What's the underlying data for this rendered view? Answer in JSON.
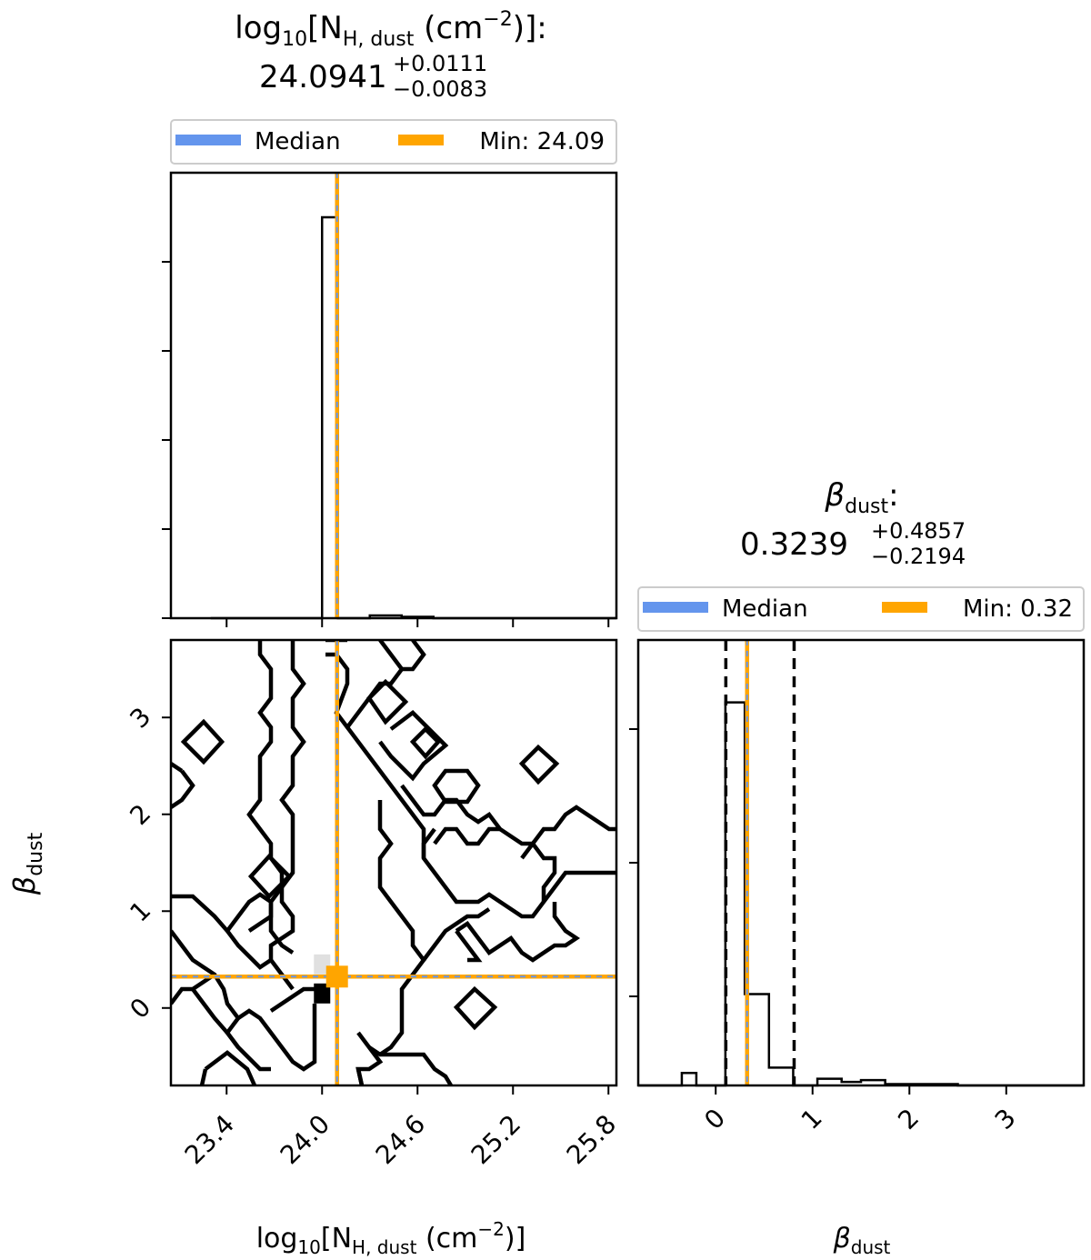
{
  "chart_data": [
    {
      "type": "histogram",
      "panel": "top-left",
      "title_line1": "log",
      "title_line2": "24.0941",
      "title_plus": "+0.0111",
      "title_minus": "−0.0083",
      "legend_entries": [
        "Median",
        "Min: 24.09"
      ],
      "legend_placement": "above",
      "x_range": [
        23.05,
        25.85
      ],
      "bins": [
        23.3,
        23.5,
        23.7,
        23.9,
        24.0,
        24.1,
        24.3,
        24.5,
        24.7,
        24.9,
        25.1,
        25.3,
        25.5,
        25.7,
        25.85
      ],
      "counts": [
        0.0,
        0.0,
        0.0,
        0.0,
        0.9,
        0.0,
        0.006,
        0.003,
        0.0,
        0.0,
        0.0,
        0.0,
        0.0,
        0.0
      ],
      "y_range": [
        0,
        1.0
      ],
      "median": 24.0941,
      "min": 24.09,
      "y_ticks_labeled": false,
      "x_ticks_labeled": false
    },
    {
      "type": "contour",
      "panel": "bottom-left",
      "x_range": [
        23.05,
        25.85
      ],
      "y_range": [
        -0.8,
        3.8
      ],
      "x_ticks": [
        23.4,
        24.0,
        24.6,
        25.2,
        25.8
      ],
      "x_tick_labels": [
        "23.4",
        "24.0",
        "24.6",
        "25.2",
        "25.8"
      ],
      "y_ticks": [
        0,
        1,
        2,
        3
      ],
      "y_tick_labels": [
        "0",
        "1",
        "2",
        "3"
      ],
      "xlabel_parts": {
        "main": "log",
        "sub10": "10",
        "br": "[N",
        "sub": "H, dust",
        "unit": " (cm",
        "sup": "−2",
        "close": ")]"
      },
      "ylabel_main": "β",
      "ylabel_sub": "dust",
      "median_x": 24.0941,
      "median_y": 0.3239,
      "peak_points": [
        {
          "x": 24.0,
          "y": 0.15,
          "weight": 1.0
        },
        {
          "x": 24.0,
          "y": 0.45,
          "weight": 0.12
        }
      ]
    },
    {
      "type": "histogram",
      "panel": "bottom-right",
      "title_main": "β",
      "title_sub": "dust",
      "title_value": "0.3239",
      "title_plus": "+0.4857",
      "title_minus": "−0.2194",
      "legend_entries": [
        "Median",
        "Min: 0.32"
      ],
      "legend_placement": "above",
      "x_range": [
        -0.8,
        3.8
      ],
      "x_ticks": [
        0,
        1,
        2,
        3
      ],
      "x_tick_labels": [
        "0",
        "1",
        "2",
        "3"
      ],
      "xlabel_main": "β",
      "xlabel_sub": "dust",
      "bins": [
        -0.8,
        -0.5,
        -0.35,
        -0.2,
        0.1,
        0.3,
        0.55,
        0.8,
        1.05,
        1.3,
        1.5,
        1.75,
        2.0,
        2.5,
        3.0,
        3.8
      ],
      "counts": [
        0.0,
        0.0,
        0.028,
        0.0,
        0.86,
        0.205,
        0.04,
        0.0,
        0.015,
        0.008,
        0.012,
        0.003,
        0.003,
        0.0,
        0.0
      ],
      "y_range": [
        0,
        1.0
      ],
      "median": 0.3239,
      "min": 0.32,
      "quantiles": [
        0.1045,
        0.8096
      ],
      "y_ticks_labeled": false
    }
  ],
  "colors": {
    "median": "#6495ed",
    "min": "#ffa500",
    "contour": "#000000",
    "legend_border": "#cccccc"
  }
}
